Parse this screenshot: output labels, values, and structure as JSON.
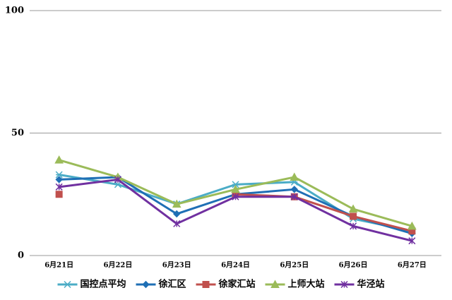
{
  "chart_data": {
    "type": "line",
    "categories": [
      "6月21日",
      "6月22日",
      "6月23日",
      "6月24日",
      "6月25日",
      "6月26日",
      "6月27日"
    ],
    "series": [
      {
        "name": "国控点平均",
        "color": "#4bacc6",
        "marker": "asterisk",
        "values": [
          33,
          29,
          21,
          29,
          30,
          15,
          10
        ]
      },
      {
        "name": "徐汇区",
        "color": "#1f6fb5",
        "marker": "diamond",
        "values": [
          31,
          32,
          17,
          25,
          27,
          16,
          9
        ]
      },
      {
        "name": "徐家汇站",
        "color": "#c0504d",
        "marker": "square",
        "values": [
          25,
          null,
          null,
          25,
          24,
          16,
          10
        ]
      },
      {
        "name": "上师大站",
        "color": "#9bbb59",
        "marker": "triangle",
        "values": [
          39,
          32,
          21,
          27,
          32,
          19,
          12
        ]
      },
      {
        "name": "华泾站",
        "color": "#7030a0",
        "marker": "star",
        "values": [
          28,
          31,
          13,
          24,
          24,
          12,
          6
        ]
      }
    ],
    "ylim": [
      0,
      100
    ],
    "yticks": [
      0,
      50,
      100
    ],
    "grid": true
  }
}
